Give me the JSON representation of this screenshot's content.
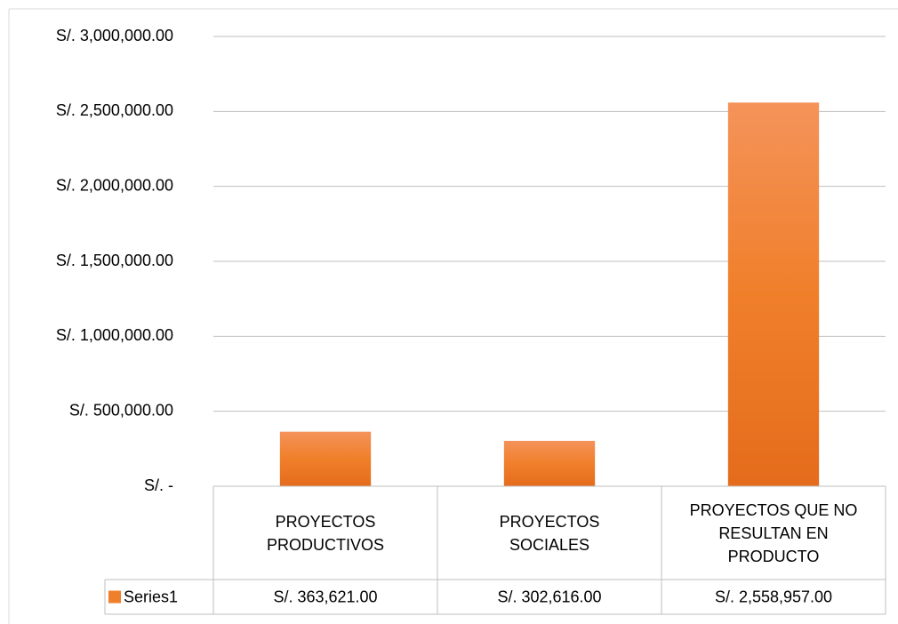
{
  "chart_data": {
    "type": "bar",
    "categories": [
      "PROYECTOS PRODUCTIVOS",
      "PROYECTOS SOCIALES",
      "PROYECTOS QUE NO RESULTAN EN PRODUCTO"
    ],
    "series": [
      {
        "name": "Series1",
        "color": "#f07f2a",
        "values": [
          363621,
          302616,
          2558957
        ],
        "value_labels": [
          "S/. 363,621.00",
          "S/. 302,616.00",
          "S/. 2,558,957.00"
        ]
      }
    ],
    "ylim": [
      0,
      3000000
    ],
    "yticks": [
      {
        "value": 0,
        "label": "S/. -"
      },
      {
        "value": 500000,
        "label": "S/. 500,000.00"
      },
      {
        "value": 1000000,
        "label": "S/. 1,000,000.00"
      },
      {
        "value": 1500000,
        "label": "S/. 1,500,000.00"
      },
      {
        "value": 2000000,
        "label": "S/. 2,000,000.00"
      },
      {
        "value": 2500000,
        "label": "S/. 2,500,000.00"
      },
      {
        "value": 3000000,
        "label": "S/. 3,000,000.00"
      }
    ],
    "grid": true,
    "data_table": true
  }
}
